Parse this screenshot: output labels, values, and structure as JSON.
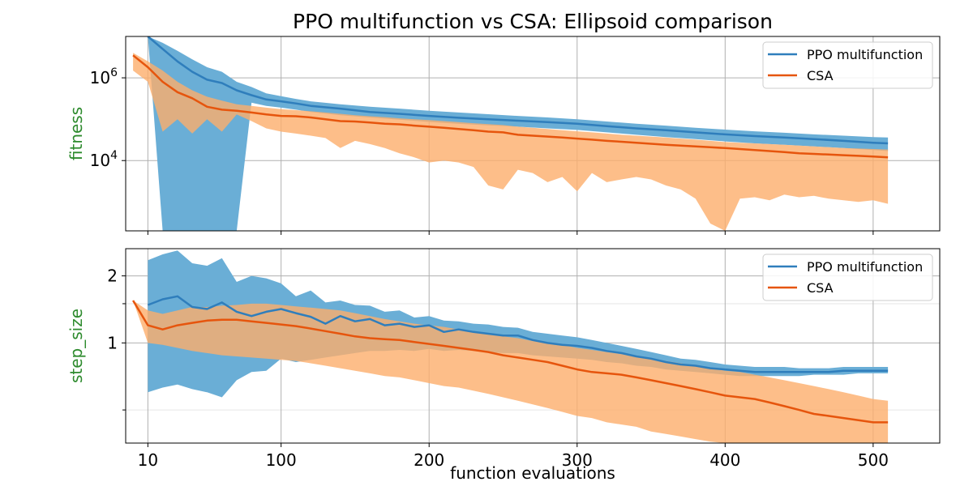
{
  "title": "PPO multifunction vs CSA: Ellipsoid comparison",
  "xlabel": "function evaluations",
  "colors": {
    "ppo_line": "#2f7ebc",
    "ppo_band": "#6aaed6",
    "csa_line": "#e6550d",
    "csa_band": "#fdae6b",
    "ylabel": "#2e8b2e"
  },
  "chart_data": [
    {
      "type": "line",
      "panel": "top",
      "title": "PPO multifunction vs CSA: Ellipsoid comparison",
      "ylabel": "fitness",
      "yscale": "log",
      "ylim": [
        200,
        10000000
      ],
      "xlim": [
        -5,
        545
      ],
      "x_ticks": [
        10,
        100,
        200,
        300,
        400,
        500
      ],
      "y_ticks": [
        {
          "value": 1000000,
          "label": "10^6",
          "base": "10",
          "exp": "6"
        },
        {
          "value": 10000,
          "label": "10^4",
          "base": "10",
          "exp": "4"
        }
      ],
      "grid": true,
      "legend": {
        "position": "top-right",
        "entries": [
          "PPO multifunction",
          "CSA"
        ]
      },
      "series": [
        {
          "name": "PPO multifunction",
          "x": [
            10,
            20,
            30,
            40,
            50,
            60,
            70,
            80,
            90,
            100,
            110,
            120,
            140,
            160,
            180,
            200,
            220,
            240,
            260,
            280,
            300,
            320,
            340,
            360,
            380,
            400,
            420,
            440,
            460,
            480,
            500,
            510
          ],
          "mean": [
            10000000,
            5000000,
            2500000,
            1400000,
            900000,
            750000,
            500000,
            380000,
            300000,
            270000,
            240000,
            210000,
            180000,
            150000,
            135000,
            120000,
            108000,
            100000,
            92000,
            85000,
            78000,
            68000,
            60000,
            54000,
            48000,
            43000,
            39000,
            36000,
            33000,
            30000,
            27000,
            26000
          ],
          "lower": [
            10000000,
            200,
            200,
            200,
            200,
            200,
            200,
            250000,
            210000,
            190000,
            170000,
            150000,
            125000,
            110000,
            97000,
            86000,
            77000,
            71000,
            66000,
            60000,
            55000,
            48000,
            42000,
            37000,
            33000,
            29000,
            26000,
            24000,
            22000,
            20000,
            18000,
            17000
          ],
          "upper": [
            10000000,
            7000000,
            4500000,
            2800000,
            1800000,
            1400000,
            800000,
            600000,
            420000,
            360000,
            310000,
            270000,
            230000,
            200000,
            180000,
            160000,
            145000,
            132000,
            120000,
            110000,
            100000,
            88000,
            78000,
            70000,
            62000,
            56000,
            51000,
            47000,
            43000,
            40000,
            37000,
            36000
          ]
        },
        {
          "name": "CSA",
          "x": [
            0,
            10,
            20,
            30,
            40,
            50,
            60,
            70,
            80,
            90,
            100,
            110,
            120,
            130,
            140,
            150,
            160,
            170,
            180,
            190,
            200,
            210,
            220,
            230,
            240,
            250,
            260,
            270,
            280,
            290,
            300,
            310,
            320,
            330,
            340,
            350,
            360,
            370,
            380,
            390,
            400,
            410,
            420,
            430,
            440,
            450,
            460,
            470,
            480,
            490,
            500,
            510
          ],
          "mean": [
            3500000,
            1800000,
            800000,
            450000,
            320000,
            200000,
            170000,
            160000,
            145000,
            130000,
            120000,
            118000,
            110000,
            100000,
            90000,
            88000,
            83000,
            78000,
            75000,
            70000,
            66000,
            62000,
            58000,
            54000,
            50000,
            48000,
            42000,
            40000,
            38000,
            36000,
            34000,
            32000,
            30000,
            28500,
            27000,
            25500,
            24000,
            23000,
            22000,
            21000,
            20000,
            19000,
            18000,
            17000,
            16000,
            15000,
            14500,
            14000,
            13500,
            13000,
            12500,
            12000
          ],
          "lower": [
            1500000,
            800000,
            50000,
            100000,
            45000,
            100000,
            50000,
            130000,
            90000,
            60000,
            50000,
            45000,
            40000,
            35000,
            20000,
            30000,
            25000,
            20000,
            15000,
            12000,
            9000,
            10000,
            9000,
            7000,
            2500,
            2000,
            6000,
            5000,
            3000,
            4000,
            1800,
            5000,
            3000,
            3500,
            4000,
            3500,
            2500,
            2000,
            1200,
            300,
            200,
            1200,
            1300,
            1100,
            1500,
            1300,
            1400,
            1200,
            1100,
            1000,
            1100,
            900
          ],
          "upper": [
            4000000,
            2500000,
            1500000,
            800000,
            500000,
            350000,
            280000,
            230000,
            210000,
            190000,
            175000,
            165000,
            155000,
            145000,
            135000,
            125000,
            118000,
            112000,
            105000,
            100000,
            95000,
            90000,
            85000,
            80000,
            76000,
            72000,
            66000,
            62000,
            58000,
            54000,
            51000,
            48000,
            45000,
            42000,
            40000,
            38000,
            36000,
            34000,
            32000,
            30000,
            28000,
            27000,
            26000,
            25000,
            24000,
            23000,
            22000,
            21000,
            20000,
            19500,
            19000,
            18500
          ]
        }
      ]
    },
    {
      "type": "line",
      "panel": "bottom",
      "ylabel": "step_size",
      "yscale": "log",
      "ylim": [
        0.355,
        2.65
      ],
      "xlim": [
        -5,
        545
      ],
      "x_ticks": [
        10,
        100,
        200,
        300,
        400,
        500
      ],
      "x_tick_labels": [
        "10",
        "100",
        "200",
        "300",
        "400",
        "500"
      ],
      "y_ticks": [
        {
          "value": 2,
          "label": "2"
        },
        {
          "value": 1,
          "label": "1"
        }
      ],
      "grid": true,
      "legend": {
        "position": "top-right",
        "entries": [
          "PPO multifunction",
          "CSA"
        ]
      },
      "series": [
        {
          "name": "PPO multifunction",
          "x": [
            10,
            20,
            30,
            40,
            50,
            60,
            70,
            80,
            90,
            100,
            110,
            120,
            130,
            140,
            150,
            160,
            170,
            180,
            190,
            200,
            210,
            220,
            230,
            240,
            250,
            260,
            270,
            280,
            290,
            300,
            310,
            320,
            330,
            340,
            350,
            360,
            370,
            380,
            390,
            400,
            410,
            420,
            430,
            440,
            450,
            460,
            470,
            480,
            490,
            500,
            510
          ],
          "mean": [
            1.48,
            1.57,
            1.62,
            1.45,
            1.42,
            1.52,
            1.38,
            1.32,
            1.38,
            1.42,
            1.36,
            1.31,
            1.22,
            1.32,
            1.25,
            1.28,
            1.2,
            1.22,
            1.18,
            1.2,
            1.12,
            1.15,
            1.12,
            1.1,
            1.08,
            1.08,
            1.03,
            1.0,
            0.98,
            0.97,
            0.95,
            0.92,
            0.9,
            0.87,
            0.85,
            0.82,
            0.8,
            0.79,
            0.77,
            0.76,
            0.75,
            0.74,
            0.74,
            0.74,
            0.74,
            0.74,
            0.74,
            0.75,
            0.75,
            0.75,
            0.75
          ],
          "lower": [
            0.6,
            0.63,
            0.65,
            0.62,
            0.6,
            0.57,
            0.68,
            0.74,
            0.75,
            0.85,
            0.82,
            0.84,
            0.86,
            0.88,
            0.9,
            0.92,
            0.92,
            0.93,
            0.92,
            0.94,
            0.92,
            0.93,
            0.92,
            0.91,
            0.9,
            0.9,
            0.88,
            0.87,
            0.86,
            0.85,
            0.84,
            0.82,
            0.81,
            0.79,
            0.78,
            0.76,
            0.75,
            0.74,
            0.73,
            0.72,
            0.71,
            0.71,
            0.71,
            0.71,
            0.71,
            0.72,
            0.72,
            0.72,
            0.73,
            0.73,
            0.73
          ],
          "upper": [
            2.35,
            2.5,
            2.6,
            2.28,
            2.22,
            2.4,
            1.88,
            2.0,
            1.95,
            1.85,
            1.62,
            1.72,
            1.52,
            1.55,
            1.48,
            1.47,
            1.38,
            1.4,
            1.3,
            1.32,
            1.26,
            1.25,
            1.22,
            1.21,
            1.18,
            1.17,
            1.12,
            1.1,
            1.08,
            1.06,
            1.03,
            1.0,
            0.97,
            0.94,
            0.91,
            0.88,
            0.85,
            0.84,
            0.82,
            0.8,
            0.79,
            0.78,
            0.78,
            0.78,
            0.77,
            0.77,
            0.77,
            0.78,
            0.78,
            0.78,
            0.78
          ]
        },
        {
          "name": "CSA",
          "x": [
            0,
            10,
            20,
            30,
            40,
            50,
            60,
            70,
            80,
            90,
            100,
            110,
            120,
            130,
            140,
            150,
            160,
            170,
            180,
            190,
            200,
            210,
            220,
            230,
            240,
            250,
            260,
            270,
            280,
            290,
            300,
            310,
            320,
            330,
            340,
            350,
            360,
            370,
            380,
            390,
            400,
            410,
            420,
            430,
            440,
            450,
            460,
            470,
            480,
            490,
            500,
            510
          ],
          "mean": [
            1.55,
            1.2,
            1.15,
            1.2,
            1.23,
            1.26,
            1.27,
            1.27,
            1.25,
            1.23,
            1.21,
            1.19,
            1.16,
            1.13,
            1.1,
            1.07,
            1.05,
            1.04,
            1.03,
            1.01,
            0.99,
            0.97,
            0.95,
            0.93,
            0.91,
            0.88,
            0.86,
            0.84,
            0.82,
            0.79,
            0.76,
            0.74,
            0.73,
            0.72,
            0.7,
            0.68,
            0.66,
            0.64,
            0.62,
            0.6,
            0.58,
            0.57,
            0.56,
            0.54,
            0.52,
            0.5,
            0.48,
            0.47,
            0.46,
            0.45,
            0.44,
            0.44
          ],
          "lower": [
            1.55,
            1.0,
            0.98,
            0.95,
            0.92,
            0.9,
            0.88,
            0.87,
            0.86,
            0.85,
            0.84,
            0.83,
            0.81,
            0.79,
            0.77,
            0.75,
            0.73,
            0.71,
            0.7,
            0.68,
            0.66,
            0.64,
            0.63,
            0.61,
            0.59,
            0.57,
            0.55,
            0.53,
            0.51,
            0.49,
            0.47,
            0.46,
            0.44,
            0.43,
            0.42,
            0.4,
            0.39,
            0.38,
            0.37,
            0.36,
            0.355,
            0.35,
            0.34,
            0.33,
            0.32,
            0.315,
            0.31,
            0.305,
            0.3,
            0.3,
            0.295,
            0.29
          ],
          "upper": [
            1.55,
            1.4,
            1.35,
            1.4,
            1.45,
            1.45,
            1.47,
            1.48,
            1.5,
            1.5,
            1.48,
            1.46,
            1.44,
            1.42,
            1.4,
            1.36,
            1.32,
            1.28,
            1.25,
            1.22,
            1.2,
            1.18,
            1.15,
            1.12,
            1.1,
            1.07,
            1.05,
            1.02,
            1.0,
            0.98,
            0.95,
            0.93,
            0.91,
            0.89,
            0.87,
            0.85,
            0.83,
            0.81,
            0.79,
            0.77,
            0.75,
            0.74,
            0.72,
            0.7,
            0.68,
            0.66,
            0.64,
            0.62,
            0.6,
            0.58,
            0.56,
            0.55
          ]
        }
      ]
    }
  ]
}
